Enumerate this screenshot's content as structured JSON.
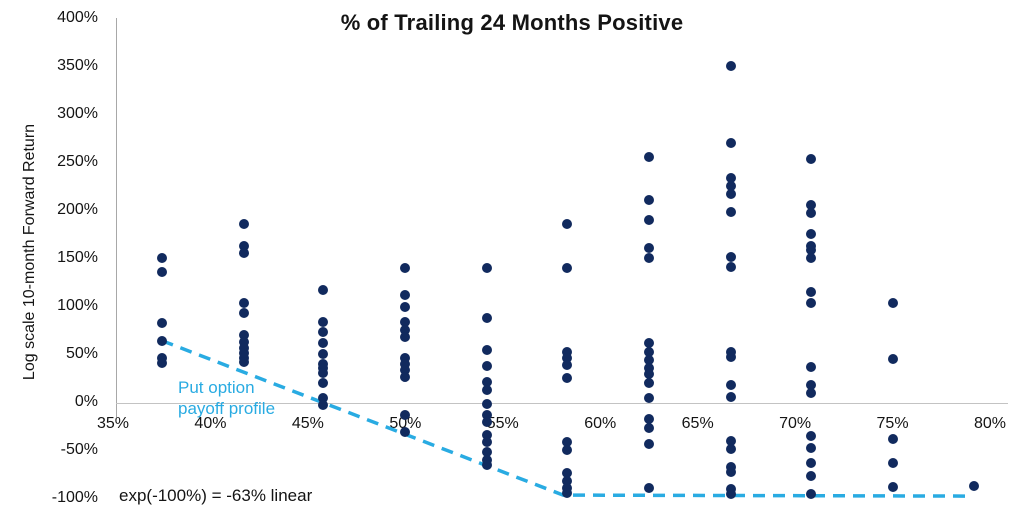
{
  "chart_data": {
    "type": "scatter",
    "title": "% of Trailing 24 Months Positive",
    "xlabel": "",
    "ylabel": "Log scale 10-month Forward Return",
    "xlim": [
      35,
      80
    ],
    "ylim": [
      -100,
      400
    ],
    "grid": false,
    "legend_position": "none",
    "x_ticks": [
      "35%",
      "40%",
      "45%",
      "50%",
      "55%",
      "60%",
      "65%",
      "70%",
      "75%",
      "80%"
    ],
    "y_ticks": [
      "400%",
      "350%",
      "300%",
      "250%",
      "200%",
      "150%",
      "100%",
      "50%",
      "0%",
      "-50%",
      "-100%"
    ],
    "point_color": "#112a5e",
    "columns": [
      {
        "x": 37.5,
        "ys": [
          150,
          135,
          82,
          64,
          46,
          41
        ]
      },
      {
        "x": 41.7,
        "ys": [
          185,
          162,
          155,
          103,
          93,
          70,
          63,
          56,
          51,
          46,
          42
        ]
      },
      {
        "x": 45.8,
        "ys": [
          117,
          83,
          73,
          61,
          50,
          40,
          35,
          30,
          20,
          4,
          -3
        ]
      },
      {
        "x": 50,
        "ys": [
          140,
          111,
          99,
          83,
          75,
          68,
          46,
          40,
          33,
          26,
          -14,
          -31
        ]
      },
      {
        "x": 54.2,
        "ys": [
          140,
          88,
          54,
          38,
          21,
          13,
          -2,
          -14,
          -21,
          -34,
          -42,
          -52,
          -60,
          -66
        ]
      },
      {
        "x": 58.3,
        "ys": [
          185,
          140,
          52,
          46,
          39,
          25,
          -42,
          -50,
          -74,
          -82,
          -90,
          -95
        ]
      },
      {
        "x": 62.5,
        "ys": [
          255,
          210,
          190,
          160,
          150,
          61,
          52,
          44,
          35,
          29,
          20,
          4,
          -18,
          -27,
          -44,
          -90
        ]
      },
      {
        "x": 66.7,
        "ys": [
          350,
          270,
          233,
          225,
          217,
          198,
          151,
          141,
          52,
          47,
          18,
          5,
          -41,
          -49,
          -68,
          -73,
          -91,
          -96
        ]
      },
      {
        "x": 70.8,
        "ys": [
          253,
          205,
          197,
          175,
          163,
          158,
          150,
          115,
          103,
          36,
          18,
          9,
          -35,
          -48,
          -64,
          -77,
          -96
        ]
      },
      {
        "x": 75,
        "ys": [
          103,
          45,
          -39,
          -64,
          -89
        ]
      },
      {
        "x": 79.2,
        "ys": [
          -88
        ]
      }
    ],
    "overlay_line": {
      "label": "Put option payoff profile",
      "label_line1": "Put option",
      "label_line2": "payoff profile",
      "color": "#29abe2",
      "style": "dashed",
      "points": [
        [
          37.5,
          64
        ],
        [
          58.1,
          -97
        ],
        [
          78.9,
          -98
        ]
      ]
    },
    "annotation": "exp(-100%) = -63% linear"
  }
}
